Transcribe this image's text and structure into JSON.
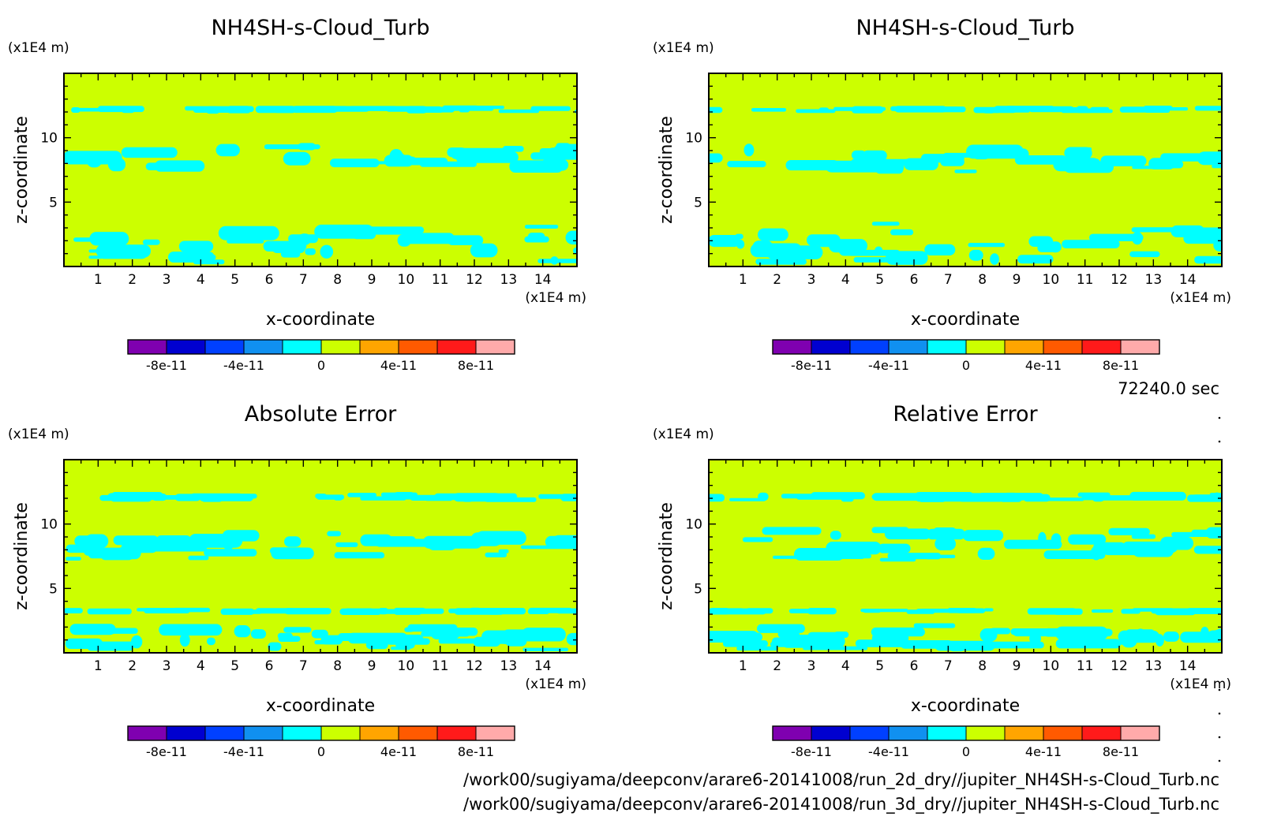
{
  "colors": {
    "background": "#ccff00",
    "pattern": "#00ffff",
    "frame": "#000000"
  },
  "scale_label": "(x1E4 m)",
  "time_label": "72240.0 sec",
  "file_paths": [
    "/work00/sugiyama/deepconv/arare6-20141008/run_2d_dry//jupiter_NH4SH-s-Cloud_Turb.nc",
    "/work00/sugiyama/deepconv/arare6-20141008/run_3d_dry//jupiter_NH4SH-s-Cloud_Turb.nc"
  ],
  "colorbar": {
    "colors": [
      "#7f00b0",
      "#0000d0",
      "#0040ff",
      "#1090f0",
      "#00ffff",
      "#ccff00",
      "#ffa500",
      "#ff5a00",
      "#ff1a1a",
      "#ffaaaa"
    ],
    "ticks": [
      "-8e-11",
      "-4e-11",
      "0",
      "4e-11",
      "8e-11"
    ]
  },
  "chart_data": [
    {
      "type": "heatmap",
      "title": "NH4SH-s-Cloud_Turb",
      "xlabel": "x-coordinate",
      "ylabel": "z-coordinate",
      "x_unit": "(x1E4 m)",
      "y_unit": "(x1E4 m)",
      "xlim": [
        0,
        15
      ],
      "ylim": [
        0,
        15
      ],
      "x_ticks": [
        1,
        2,
        3,
        4,
        5,
        6,
        7,
        8,
        9,
        10,
        11,
        12,
        13,
        14
      ],
      "y_ticks": [
        5,
        10
      ],
      "value_range": [
        -1e-10,
        1e-10
      ],
      "dominant_value": "0 to 2e-11",
      "feature_value": "-2e-11 to 0",
      "feature_bands": [
        {
          "z_range": [
            11.9,
            12.5
          ],
          "intensity": 0.35
        },
        {
          "z_range": [
            7.2,
            9.6
          ],
          "intensity": 0.5
        },
        {
          "z_range": [
            0.1,
            3.5
          ],
          "intensity": 0.55
        }
      ]
    },
    {
      "type": "heatmap",
      "title": "NH4SH-s-Cloud_Turb",
      "xlabel": "x-coordinate",
      "ylabel": "z-coordinate",
      "x_unit": "(x1E4 m)",
      "y_unit": "(x1E4 m)",
      "xlim": [
        0,
        15
      ],
      "ylim": [
        0,
        15
      ],
      "x_ticks": [
        1,
        2,
        3,
        4,
        5,
        6,
        7,
        8,
        9,
        10,
        11,
        12,
        13,
        14
      ],
      "y_ticks": [
        5,
        10
      ],
      "value_range": [
        -1e-10,
        1e-10
      ],
      "dominant_value": "0 to 2e-11",
      "feature_value": "-2e-11 to 0",
      "feature_bands": [
        {
          "z_range": [
            11.9,
            12.5
          ],
          "intensity": 0.35
        },
        {
          "z_range": [
            7.2,
            9.6
          ],
          "intensity": 0.5
        },
        {
          "z_range": [
            0.1,
            3.5
          ],
          "intensity": 0.55
        }
      ]
    },
    {
      "type": "heatmap",
      "title": "Absolute Error",
      "xlabel": "x-coordinate",
      "ylabel": "z-coordinate",
      "x_unit": "(x1E4 m)",
      "y_unit": "(x1E4 m)",
      "xlim": [
        0,
        15
      ],
      "ylim": [
        0,
        15
      ],
      "x_ticks": [
        1,
        2,
        3,
        4,
        5,
        6,
        7,
        8,
        9,
        10,
        11,
        12,
        13,
        14
      ],
      "y_ticks": [
        5,
        10
      ],
      "value_range": [
        -1e-10,
        1e-10
      ],
      "dominant_value": "0 to 2e-11",
      "feature_value": "-2e-11 to 0",
      "feature_bands": [
        {
          "z_range": [
            11.7,
            12.5
          ],
          "intensity": 0.4
        },
        {
          "z_range": [
            7.0,
            9.6
          ],
          "intensity": 0.6
        },
        {
          "z_range": [
            3.0,
            3.5
          ],
          "intensity": 0.3
        },
        {
          "z_range": [
            0.1,
            2.3
          ],
          "intensity": 0.65
        }
      ]
    },
    {
      "type": "heatmap",
      "title": "Relative Error",
      "xlabel": "x-coordinate",
      "ylabel": "z-coordinate",
      "x_unit": "(x1E4 m)",
      "y_unit": "(x1E4 m)",
      "xlim": [
        0,
        15
      ],
      "ylim": [
        0,
        15
      ],
      "x_ticks": [
        1,
        2,
        3,
        4,
        5,
        6,
        7,
        8,
        9,
        10,
        11,
        12,
        13,
        14
      ],
      "y_ticks": [
        5,
        10
      ],
      "value_range": [
        -1e-10,
        1e-10
      ],
      "dominant_value": "0 to 2e-11",
      "feature_value": "-2e-11 to 0",
      "feature_bands": [
        {
          "z_range": [
            11.7,
            12.5
          ],
          "intensity": 0.45
        },
        {
          "z_range": [
            7.0,
            9.8
          ],
          "intensity": 0.6
        },
        {
          "z_range": [
            3.0,
            3.5
          ],
          "intensity": 0.3
        },
        {
          "z_range": [
            0.1,
            2.3
          ],
          "intensity": 0.7
        }
      ]
    }
  ]
}
